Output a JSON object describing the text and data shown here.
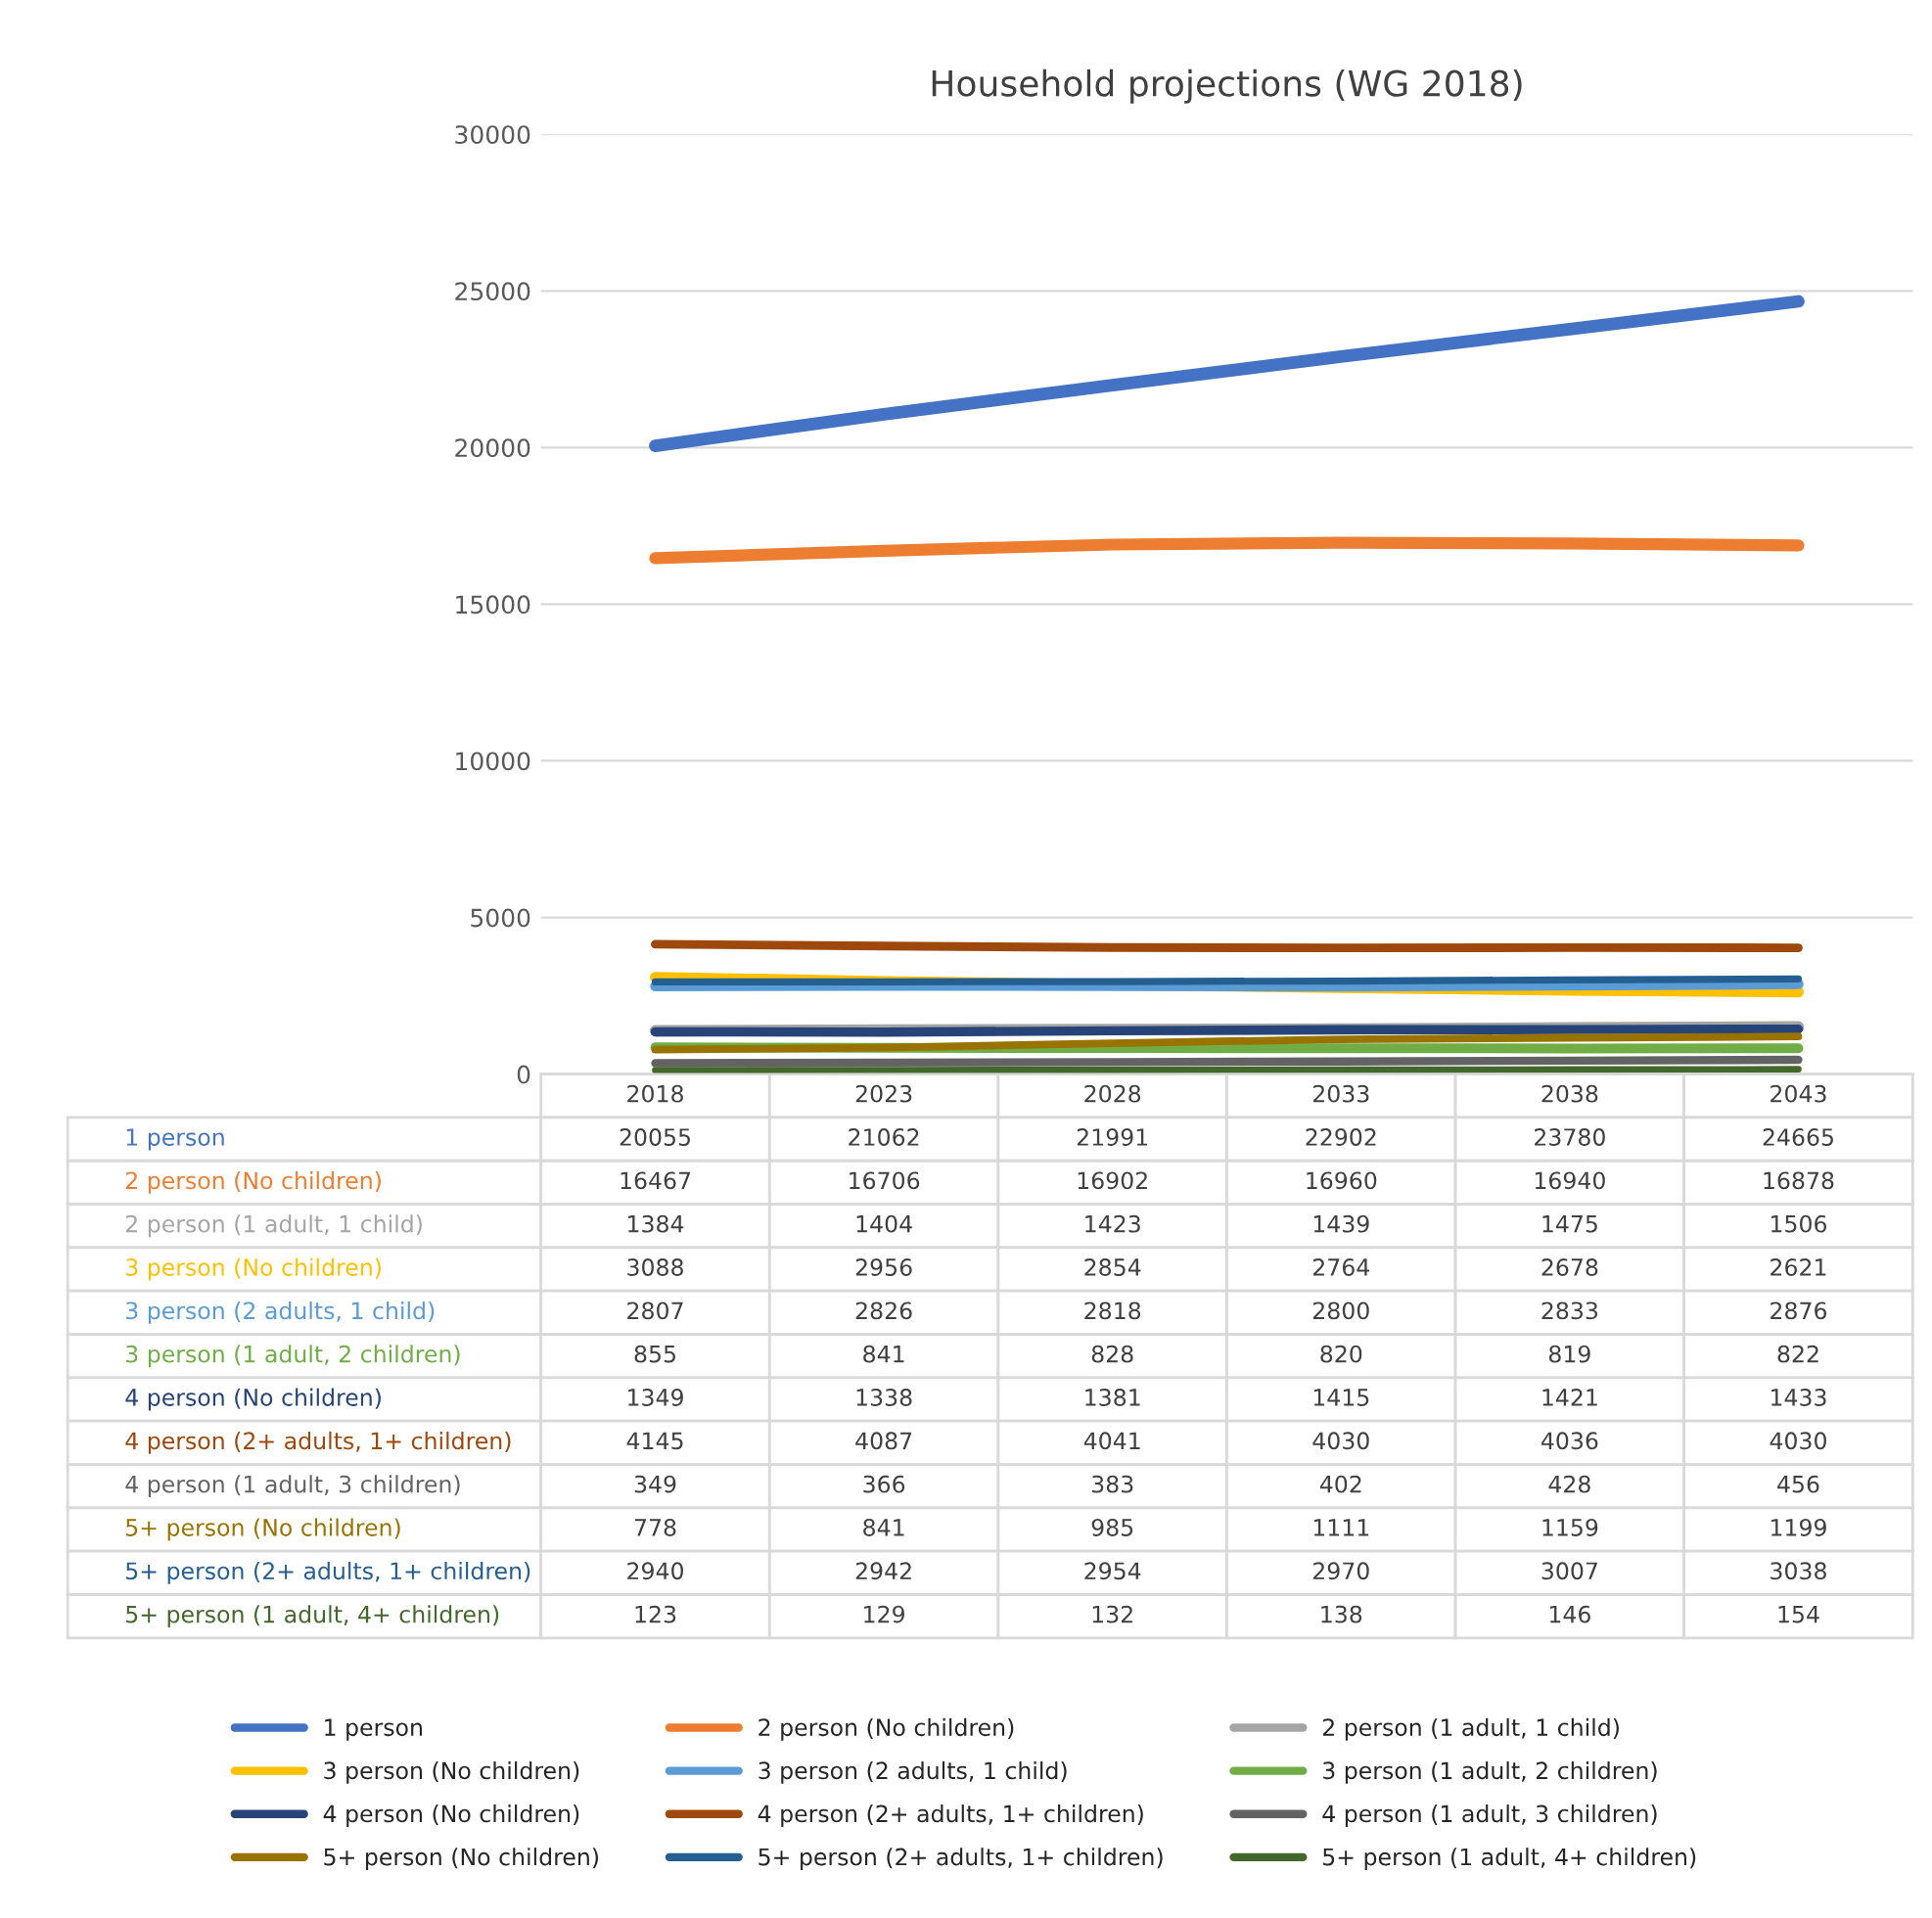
{
  "chart_data": {
    "type": "line",
    "title": "Household projections (WG 2018)",
    "categories": [
      "2018",
      "2023",
      "2028",
      "2033",
      "2038",
      "2043"
    ],
    "ylim": [
      0,
      30000
    ],
    "yticks": [
      0,
      5000,
      10000,
      15000,
      20000,
      25000,
      30000
    ],
    "grid": "y",
    "legend": "bottom",
    "data_labels": true,
    "marker": "none",
    "line_style": "solid",
    "series": [
      {
        "name": "1 person",
        "color": "#4472c4",
        "values": [
          20055,
          21062,
          21991,
          22902,
          23780,
          24665
        ]
      },
      {
        "name": "2 person (No children)",
        "color": "#ed7d31",
        "values": [
          16467,
          16706,
          16902,
          16960,
          16940,
          16878
        ]
      },
      {
        "name": "2 person (1 adult, 1 child)",
        "color": "#a5a5a5",
        "values": [
          1384,
          1404,
          1423,
          1439,
          1475,
          1506
        ]
      },
      {
        "name": "3 person (No children)",
        "color": "#ffc000",
        "values": [
          3088,
          2956,
          2854,
          2764,
          2678,
          2621
        ]
      },
      {
        "name": "3 person (2 adults, 1 child)",
        "color": "#5b9bd5",
        "values": [
          2807,
          2826,
          2818,
          2800,
          2833,
          2876
        ]
      },
      {
        "name": "3 person (1 adult, 2 children)",
        "color": "#70ad47",
        "values": [
          855,
          841,
          828,
          820,
          819,
          822
        ]
      },
      {
        "name": "4 person (No children)",
        "color": "#264478",
        "values": [
          1349,
          1338,
          1381,
          1415,
          1421,
          1433
        ]
      },
      {
        "name": "4 person (2+ adults, 1+ children)",
        "color": "#9e480e",
        "values": [
          4145,
          4087,
          4041,
          4030,
          4036,
          4030
        ]
      },
      {
        "name": "4 person (1 adult, 3 children)",
        "color": "#636363",
        "values": [
          349,
          366,
          383,
          402,
          428,
          456
        ]
      },
      {
        "name": "5+ person (No children)",
        "color": "#997300",
        "values": [
          778,
          841,
          985,
          1111,
          1159,
          1199
        ]
      },
      {
        "name": "5+ person (2+ adults, 1+ children)",
        "color": "#255e91",
        "values": [
          2940,
          2942,
          2954,
          2970,
          3007,
          3038
        ]
      },
      {
        "name": "5+ person (1 adult, 4+ children)",
        "color": "#43682b",
        "values": [
          123,
          129,
          132,
          138,
          146,
          154
        ]
      }
    ]
  }
}
